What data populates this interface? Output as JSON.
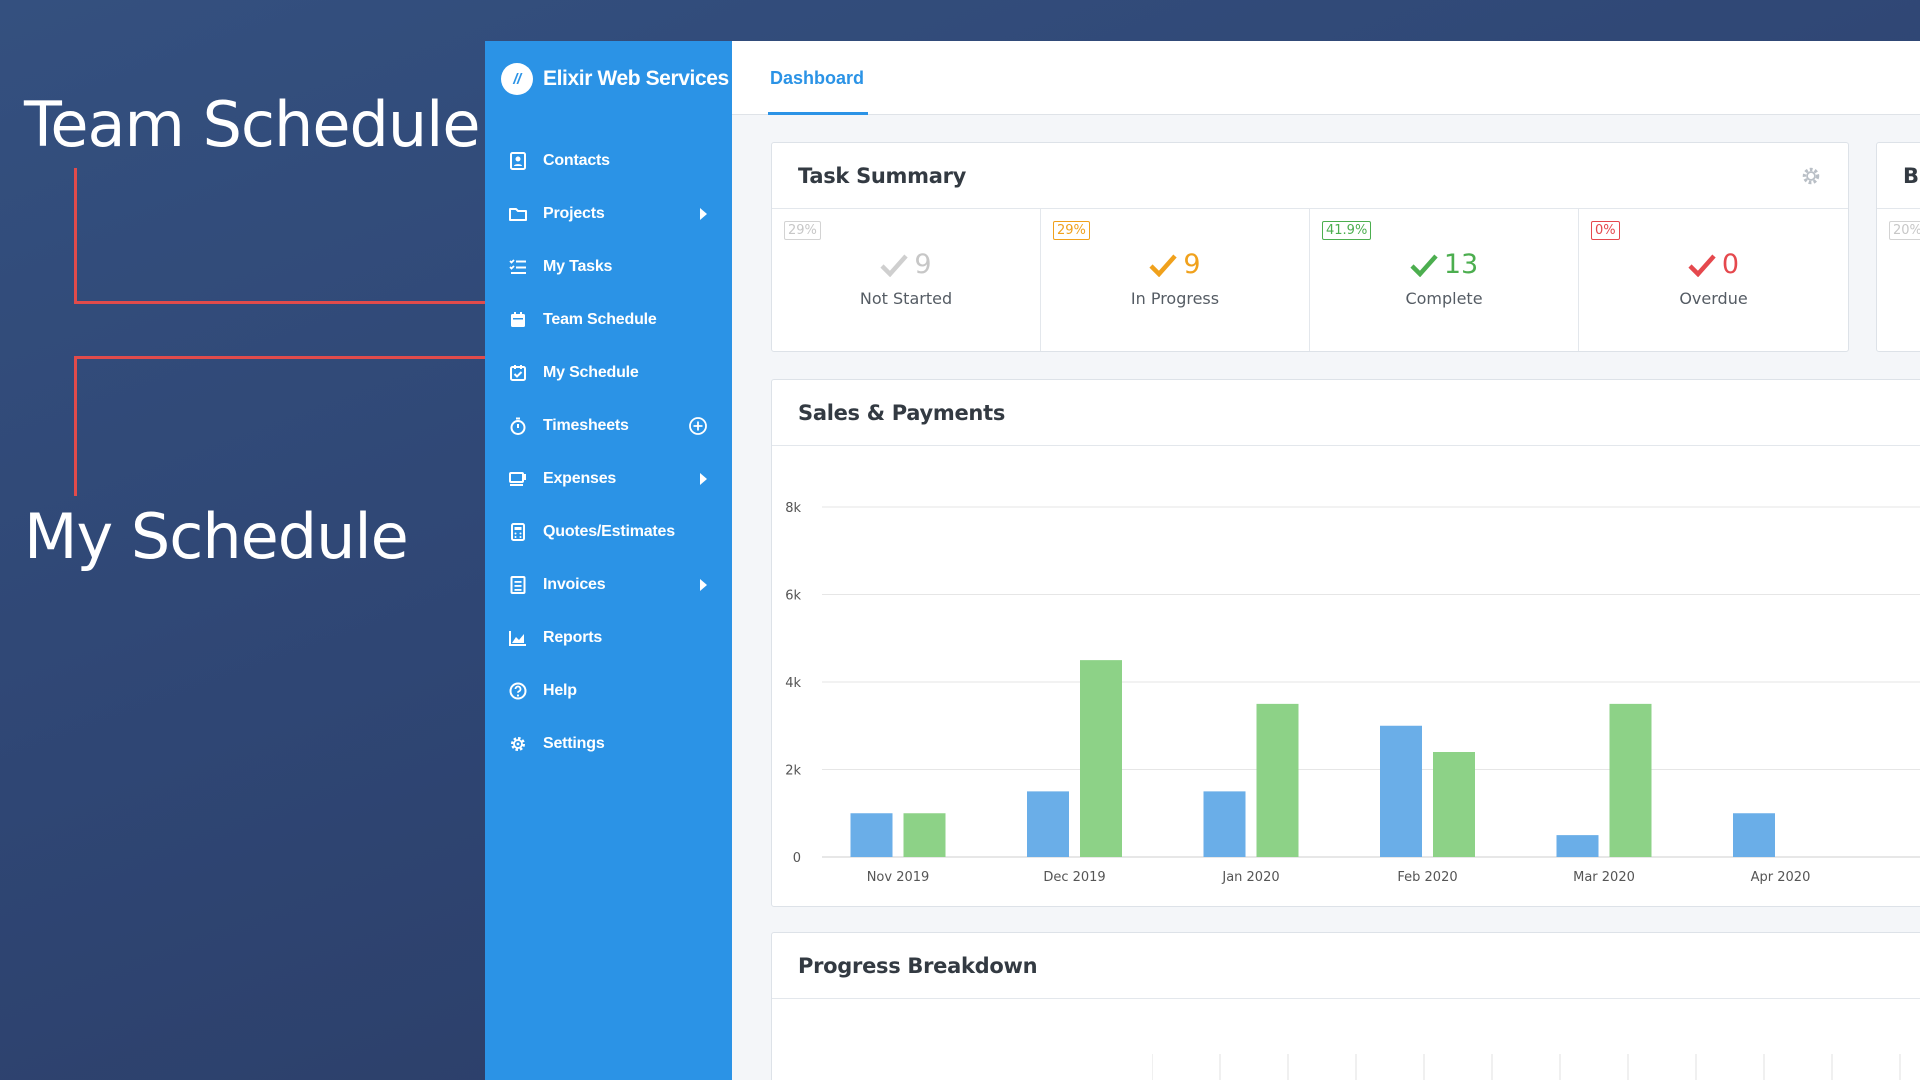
{
  "callouts": {
    "team": "Team Schedule",
    "my": "My Schedule"
  },
  "brand": {
    "name": "Elixir Web Services",
    "logo_text": "//"
  },
  "sidebar": {
    "items": [
      {
        "label": "Contacts",
        "icon": "contacts-icon"
      },
      {
        "label": "Projects",
        "icon": "folder-icon",
        "trail": "caret"
      },
      {
        "label": "My Tasks",
        "icon": "tasks-icon"
      },
      {
        "label": "Team Schedule",
        "icon": "calendar-icon"
      },
      {
        "label": "My Schedule",
        "icon": "calendar-check-icon"
      },
      {
        "label": "Timesheets",
        "icon": "stopwatch-icon",
        "trail": "plus"
      },
      {
        "label": "Expenses",
        "icon": "cup-icon",
        "trail": "caret"
      },
      {
        "label": "Quotes/Estimates",
        "icon": "calculator-icon"
      },
      {
        "label": "Invoices",
        "icon": "invoice-icon",
        "trail": "caret"
      },
      {
        "label": "Reports",
        "icon": "reports-icon"
      },
      {
        "label": "Help",
        "icon": "help-icon"
      },
      {
        "label": "Settings",
        "icon": "gear-icon"
      }
    ]
  },
  "tabs": {
    "active": "Dashboard"
  },
  "task_summary": {
    "title": "Task Summary",
    "stats": [
      {
        "badge": "29%",
        "value": "9",
        "label": "Not Started",
        "color": "#c7c7c7"
      },
      {
        "badge": "29%",
        "value": "9",
        "label": "In Progress",
        "color": "#f0a11c"
      },
      {
        "badge": "41.9%",
        "value": "13",
        "label": "Complete",
        "color": "#4cae4f"
      },
      {
        "badge": "0%",
        "value": "0",
        "label": "Overdue",
        "color": "#e5484d"
      }
    ],
    "next_card_title": "Bu",
    "next_card_badge": "20%"
  },
  "sales": {
    "title": "Sales & Payments"
  },
  "progress": {
    "title": "Progress Breakdown"
  },
  "chart_data": {
    "type": "bar",
    "categories": [
      "Nov 2019",
      "Dec 2019",
      "Jan 2020",
      "Feb 2020",
      "Mar 2020",
      "Apr 2020"
    ],
    "series": [
      {
        "values": [
          1000,
          1500,
          1500,
          3000,
          500,
          1000
        ],
        "color": "#6aaee8"
      },
      {
        "values": [
          1000,
          4500,
          3500,
          2400,
          3500,
          0
        ],
        "color": "#8dd287"
      }
    ],
    "yticks": [
      "0",
      "2k",
      "4k",
      "6k",
      "8k"
    ],
    "ytick_values": [
      0,
      2000,
      4000,
      6000,
      8000
    ],
    "ylim": [
      0,
      8000
    ],
    "grid": true
  }
}
